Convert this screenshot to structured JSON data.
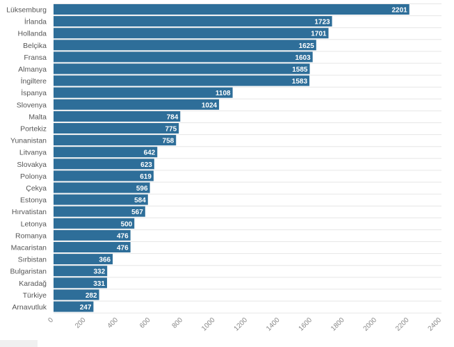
{
  "chart_data": {
    "type": "bar",
    "orientation": "horizontal",
    "categories": [
      "Lüksemburg",
      "İrlanda",
      "Hollanda",
      "Belçika",
      "Fransa",
      "Almanya",
      "İngiltere",
      "İspanya",
      "Slovenya",
      "Malta",
      "Portekiz",
      "Yunanistan",
      "Litvanya",
      "Slovakya",
      "Polonya",
      "Çekya",
      "Estonya",
      "Hırvatistan",
      "Letonya",
      "Romanya",
      "Macaristan",
      "Sırbistan",
      "Bulgaristan",
      "Karadağ",
      "Türkiye",
      "Arnavutluk"
    ],
    "values": [
      2201,
      1723,
      1701,
      1625,
      1603,
      1585,
      1583,
      1108,
      1024,
      784,
      775,
      758,
      642,
      623,
      619,
      596,
      584,
      567,
      500,
      476,
      476,
      366,
      332,
      331,
      282,
      247
    ],
    "xlim": [
      0,
      2400
    ],
    "xticks": [
      0,
      200,
      400,
      600,
      800,
      1000,
      1200,
      1400,
      1600,
      1800,
      2000,
      2200,
      2400
    ],
    "grid": true,
    "bar_color": "#2e6e99",
    "value_label_color": "#ffffff"
  }
}
